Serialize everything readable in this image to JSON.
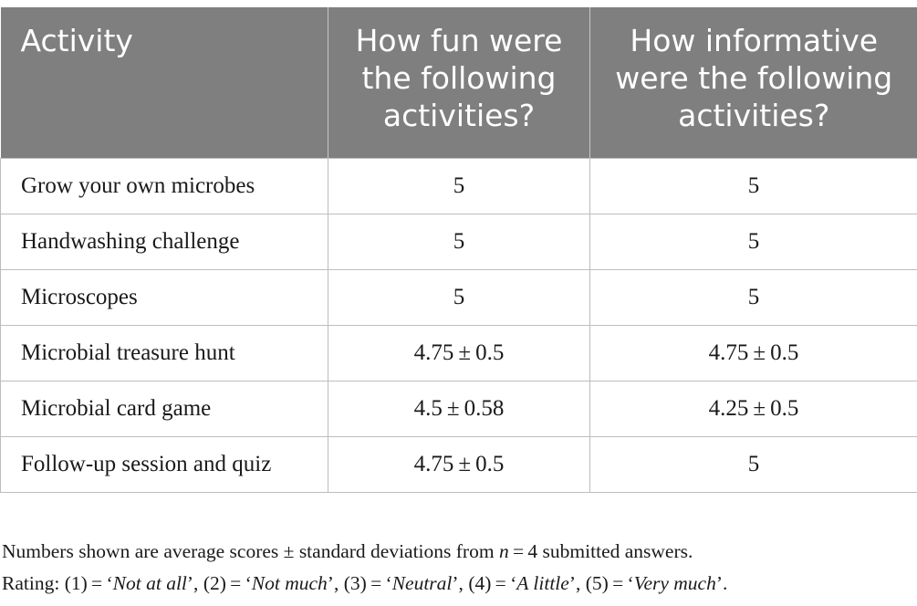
{
  "table": {
    "headers": [
      "Activity",
      "How fun were the following activities?",
      "How informative were the following activities?"
    ],
    "rows": [
      [
        "Grow your own microbes",
        "5",
        "5"
      ],
      [
        "Handwashing challenge",
        "5",
        "5"
      ],
      [
        "Microscopes",
        "5",
        "5"
      ],
      [
        "Microbial treasure hunt",
        "4.75 ± 0.5",
        "4.75 ± 0.5"
      ],
      [
        "Microbial card game",
        "4.5 ± 0.58",
        "4.25 ± 0.5"
      ],
      [
        "Follow-up session and quiz",
        "4.75 ± 0.5",
        "5"
      ]
    ],
    "colors": {
      "header_bg": "#7f7f7f",
      "header_text": "#ffffff",
      "grid": "#bdbdbd"
    }
  },
  "footnotes": {
    "line1": {
      "before_n": "Numbers shown are average scores ± standard deviations from ",
      "n_var": "n",
      "after_n": " = 4 submitted answers."
    },
    "line2": {
      "prefix": "Rating: ",
      "items": [
        {
          "code": "(1) = ‘",
          "label": "Not at all",
          "suffix": "’, "
        },
        {
          "code": "(2) = ‘",
          "label": "Not much",
          "suffix": "’, "
        },
        {
          "code": "(3) = ‘",
          "label": "Neutral",
          "suffix": "’, "
        },
        {
          "code": "(4) = ‘",
          "label": "A little",
          "suffix": "’, "
        },
        {
          "code": "(5) = ‘",
          "label": "Very much",
          "suffix": "’."
        }
      ]
    }
  }
}
